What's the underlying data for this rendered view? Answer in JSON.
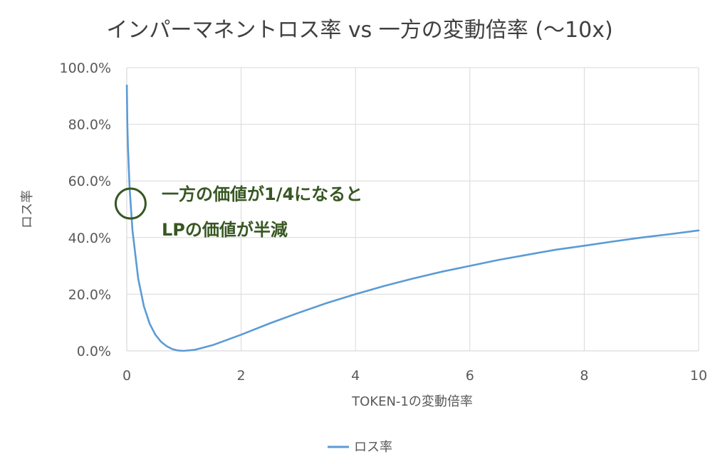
{
  "chart_data": {
    "type": "line",
    "title": "インパーマネントロス率 vs 一方の変動倍率 (〜10x)",
    "xlabel": "TOKEN-1の変動倍率",
    "ylabel": "ロス率",
    "xlim": [
      0,
      10
    ],
    "ylim": [
      0,
      1
    ],
    "x_ticks": [
      0,
      2,
      4,
      6,
      8,
      10
    ],
    "x_tick_labels": [
      "0",
      "2",
      "4",
      "6",
      "8",
      "10"
    ],
    "y_ticks": [
      0,
      0.2,
      0.4,
      0.6,
      0.8,
      1.0
    ],
    "y_tick_labels": [
      "0.0%",
      "20.0%",
      "40.0%",
      "60.0%",
      "80.0%",
      "100.0%"
    ],
    "grid": true,
    "legend_position": "bottom",
    "series": [
      {
        "name": "ロス率",
        "color": "#5B9BD5",
        "x": [
          0.001,
          0.01,
          0.02,
          0.05,
          0.1,
          0.2,
          0.3,
          0.4,
          0.5,
          0.6,
          0.7,
          0.8,
          0.9,
          1.0,
          1.2,
          1.5,
          2,
          2.5,
          3,
          3.5,
          4,
          4.5,
          5,
          5.5,
          6,
          6.5,
          7,
          7.5,
          8,
          8.5,
          9,
          9.5,
          10
        ],
        "y": [
          0.937,
          0.802,
          0.723,
          0.574,
          0.425,
          0.255,
          0.157,
          0.096,
          0.057,
          0.032,
          0.016,
          0.006,
          0.001,
          0.0,
          0.004,
          0.02,
          0.057,
          0.097,
          0.134,
          0.169,
          0.2,
          0.229,
          0.255,
          0.279,
          0.3,
          0.321,
          0.339,
          0.357,
          0.371,
          0.386,
          0.4,
          0.412,
          0.425
        ]
      }
    ],
    "annotations": {
      "lines": [
        "一方の価値が1/4になると",
        "LPの価値が半減"
      ],
      "circle_at": {
        "x": 0.03,
        "y": 0.52
      },
      "color": "#385723"
    }
  }
}
